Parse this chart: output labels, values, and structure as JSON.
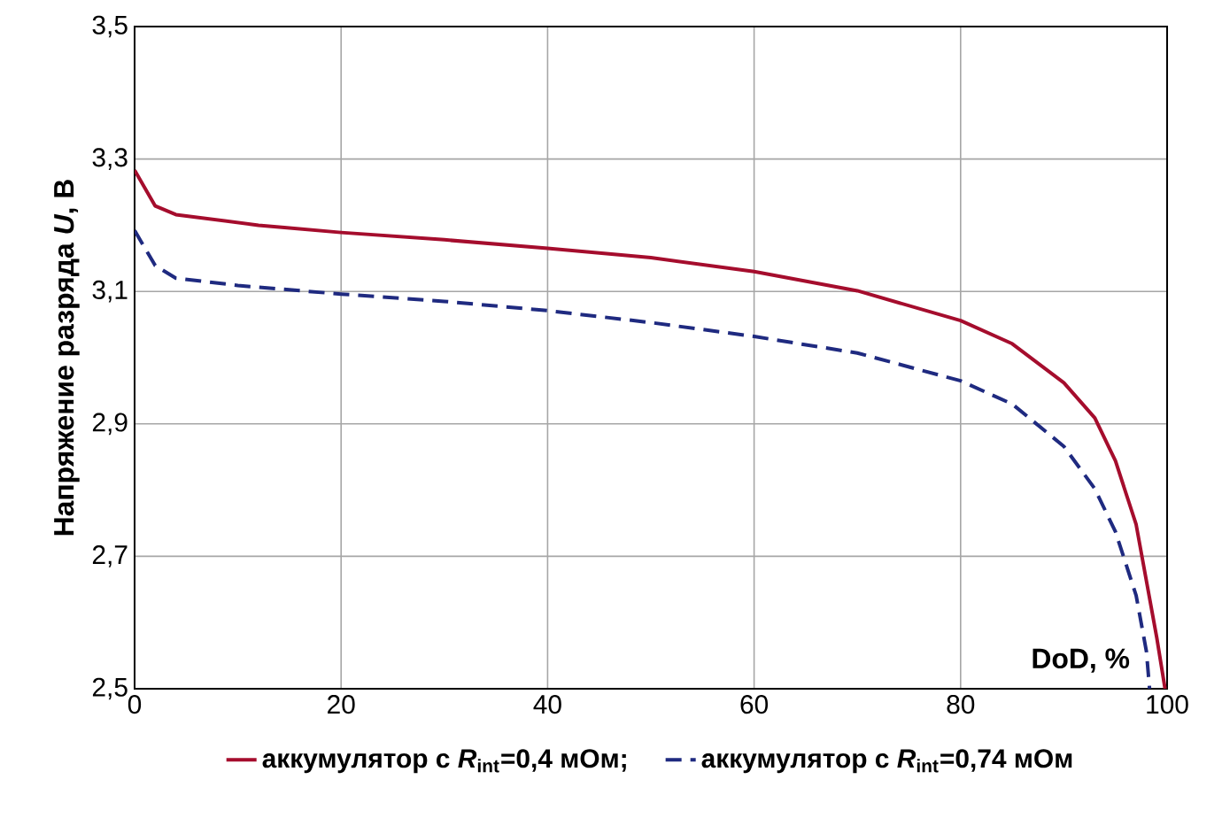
{
  "chart_data": {
    "type": "line",
    "xlabel": "DoD, %",
    "ylabel": "**Напряжение разряда *U*, В**",
    "xlim": [
      0,
      100
    ],
    "ylim": [
      2.5,
      3.5
    ],
    "xticks": [
      0,
      20,
      40,
      60,
      80,
      100
    ],
    "yticks": [
      {
        "value": 2.5,
        "label": "2,5"
      },
      {
        "value": 2.7,
        "label": "2,7"
      },
      {
        "value": 2.9,
        "label": "2,9"
      },
      {
        "value": 3.1,
        "label": "3,1"
      },
      {
        "value": 3.3,
        "label": "3,3"
      },
      {
        "value": 3.5,
        "label": "3,5"
      }
    ],
    "grid": true,
    "legend": "bottom",
    "series": [
      {
        "name": "аккумулятор с *R*$_{int}$=0,4 мОм;",
        "color": "#a50d2d",
        "line_style": "solid",
        "x": [
          0,
          2,
          4,
          8,
          12,
          20,
          30,
          40,
          50,
          60,
          70,
          80,
          85,
          90,
          93,
          95,
          97,
          99,
          99.8
        ],
        "values": [
          3.283,
          3.229,
          3.216,
          3.208,
          3.2,
          3.189,
          3.178,
          3.165,
          3.151,
          3.13,
          3.101,
          3.056,
          3.021,
          2.962,
          2.909,
          2.844,
          2.748,
          2.577,
          2.5
        ]
      },
      {
        "name": "аккумулятор с *R*$_{int}$=0,74 мОм",
        "color": "#1f2a80",
        "line_style": "dashed",
        "x": [
          0,
          2,
          4,
          10,
          20,
          30,
          40,
          50,
          60,
          70,
          80,
          85,
          90,
          93,
          95,
          97,
          98,
          98.3
        ],
        "values": [
          3.192,
          3.139,
          3.12,
          3.109,
          3.096,
          3.085,
          3.071,
          3.053,
          3.032,
          3.007,
          2.965,
          2.93,
          2.866,
          2.802,
          2.737,
          2.641,
          2.556,
          2.5
        ]
      }
    ]
  }
}
